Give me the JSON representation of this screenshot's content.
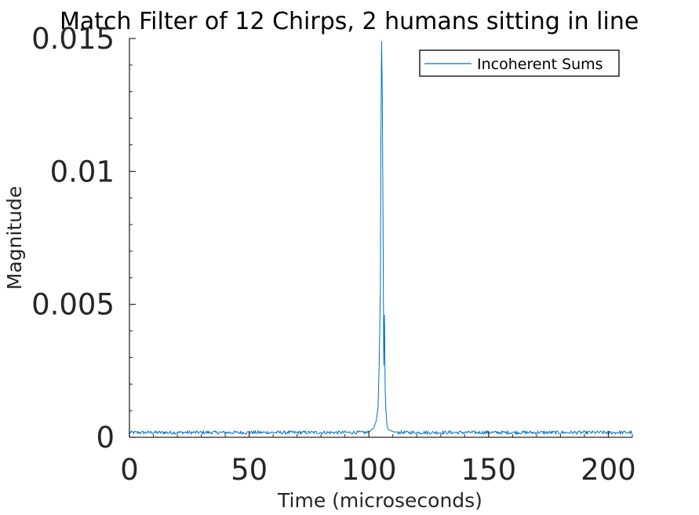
{
  "chart_data": {
    "type": "line",
    "title": "Match Filter of 12 Chirps, 2 humans sitting in line",
    "xlabel": "Time (microseconds)",
    "ylabel": "Magnitude",
    "xlim": [
      0,
      210
    ],
    "ylim": [
      0,
      0.015
    ],
    "xticks": [
      0,
      50,
      100,
      150,
      200
    ],
    "xtick_labels": [
      "0",
      "50",
      "100",
      "150",
      "200"
    ],
    "yticks": [
      0,
      0.005,
      0.01,
      0.015
    ],
    "ytick_labels": [
      "0",
      "0.005",
      "0.01",
      "0.015"
    ],
    "grid": false,
    "legend_position": "top-right",
    "series": [
      {
        "name": "Incoherent Sums",
        "color": "#0072BD",
        "noise_floor": 0.00018,
        "noise_amplitude": 0.00012,
        "x": [
          100,
          102,
          103,
          103.8,
          104.3,
          104.8,
          105.0,
          105.3,
          105.6,
          105.9,
          106.2,
          106.5,
          106.8,
          107.1,
          107.5,
          108.0,
          109.0,
          110.5,
          112
        ],
        "y": [
          0.0002,
          0.00035,
          0.0006,
          0.0011,
          0.0028,
          0.0056,
          0.0112,
          0.0149,
          0.0128,
          0.0081,
          0.0027,
          0.0046,
          0.0018,
          0.001,
          0.0005,
          0.0003,
          0.00025,
          0.0002,
          0.0002
        ]
      }
    ]
  }
}
